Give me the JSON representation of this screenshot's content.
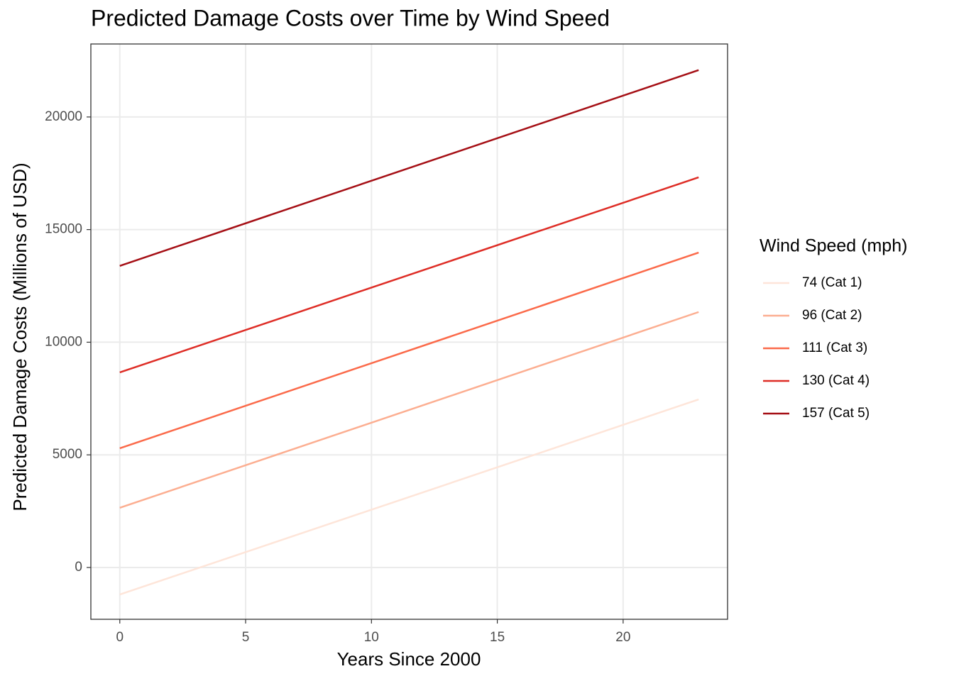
{
  "chart_data": {
    "type": "line",
    "title": "Predicted Damage Costs over Time by Wind Speed",
    "x_label": "Years Since 2000",
    "y_label": "Predicted Damage Costs (Millions of USD)",
    "legend_title": "Wind Speed (mph)",
    "legend": "right",
    "grid": true,
    "x": [
      0,
      23
    ],
    "series": [
      {
        "name": "74 (Cat 1)",
        "color": "#FEE5D9",
        "values": [
          -1200,
          7460
        ]
      },
      {
        "name": "96 (Cat 2)",
        "color": "#FCAE91",
        "values": [
          2650,
          11340
        ]
      },
      {
        "name": "111 (Cat 3)",
        "color": "#FB6A4A",
        "values": [
          5290,
          13980
        ]
      },
      {
        "name": "130 (Cat 4)",
        "color": "#DE2D26",
        "values": [
          8660,
          17320
        ]
      },
      {
        "name": "157 (Cat 5)",
        "color": "#A50F15",
        "values": [
          13390,
          22080
        ]
      }
    ],
    "xlim": [
      -1.15,
      24.15
    ],
    "xticks": [
      0,
      5,
      10,
      15,
      20
    ],
    "ylim": [
      -2300,
      23240
    ],
    "yticks": [
      0,
      5000,
      10000,
      15000,
      20000
    ]
  }
}
